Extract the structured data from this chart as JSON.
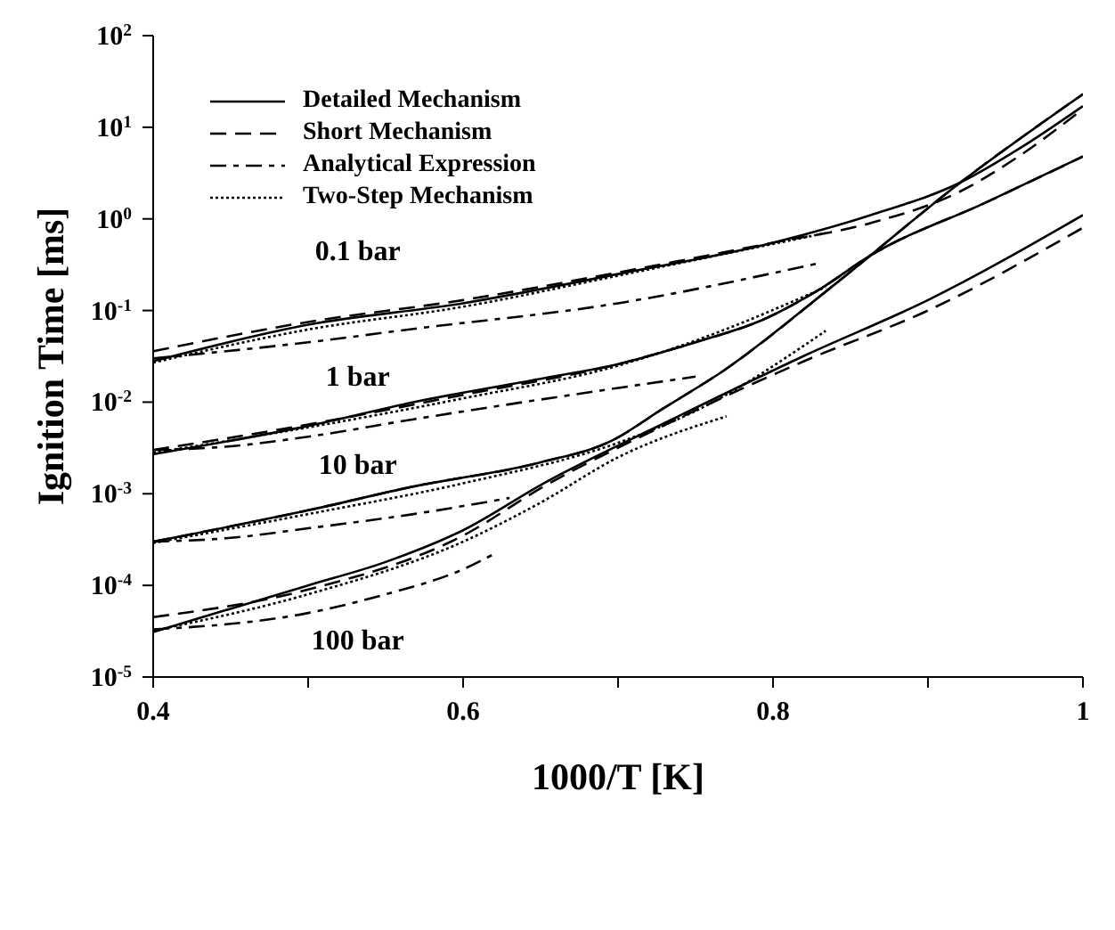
{
  "chart_data": {
    "type": "line",
    "xlabel": "1000/T [K]",
    "ylabel": "Ignition Time [ms]",
    "log": "y",
    "legend": "top left",
    "xlim": [
      0.4,
      1
    ],
    "xticks": [
      0.4,
      {
        "value": 0.5,
        "label": null
      },
      0.6,
      {
        "value": 0.7,
        "label": null
      },
      0.8,
      {
        "value": 0.9,
        "label": null
      },
      1
    ],
    "ylim": [
      1e-05,
      100
    ],
    "yticks": [
      {
        "value": 1e-05,
        "label": "10$^{-5}$"
      },
      {
        "value": 0.0001,
        "label": "10$^{-4}$"
      },
      {
        "value": 0.001,
        "label": "10$^{-3}$"
      },
      {
        "value": 0.01,
        "label": "10$^{-2}$"
      },
      {
        "value": 0.1,
        "label": "10$^{-1}$"
      },
      {
        "value": 1,
        "label": "10$^{0}$"
      },
      {
        "value": 10,
        "label": "10$^{1}$"
      },
      {
        "value": 100,
        "label": "10$^{2}$"
      }
    ],
    "annotations": [
      "0.1 bar",
      "1 bar",
      "10 bar",
      "100 bar"
    ],
    "series": [
      {
        "name": "Detailed Mechanism",
        "color": "#000000",
        "line_style": "solid",
        "x": [
          0.4,
          0.5,
          0.6,
          0.7,
          0.8,
          0.863,
          0.921,
          0.96,
          1.0
        ],
        "values": [
          0.028,
          0.07,
          0.12,
          0.25,
          0.55,
          1.1,
          2.5,
          6,
          17
        ]
      },
      {
        "name": "Short Mechanism",
        "color": "#000000",
        "line_style": "dashed",
        "x": [
          0.4,
          0.5,
          0.6,
          0.7,
          0.8,
          0.863,
          0.921,
          0.96,
          1.0
        ],
        "values": [
          0.036,
          0.075,
          0.13,
          0.26,
          0.55,
          0.9,
          2.0,
          5,
          15.8
        ]
      },
      {
        "name": "Analytical Expression",
        "color": "#000000",
        "line_style": "dashdot",
        "x": [
          0.4,
          0.5,
          0.568,
          0.7,
          0.83
        ],
        "values": [
          0.03,
          0.045,
          0.063,
          0.12,
          0.33
        ]
      },
      {
        "name": "Two-Step Mechanism",
        "color": "#000000",
        "line_style": "dotted",
        "x": [
          0.4,
          0.5,
          0.6,
          0.7,
          0.834
        ],
        "values": [
          0.027,
          0.062,
          0.11,
          0.24,
          0.7
        ]
      },
      {
        "color": "#000000",
        "line_style": "solid",
        "x": [
          0.4,
          0.5,
          0.568,
          0.65,
          0.7,
          0.75,
          0.794,
          0.83,
          0.863,
          0.937,
          1.0
        ],
        "values": [
          0.0027,
          0.0055,
          0.01,
          0.018,
          0.026,
          0.045,
          0.08,
          0.17,
          0.4,
          1.5,
          4.8
        ]
      },
      {
        "color": "#000000",
        "line_style": "dashed",
        "x": [
          0.4,
          0.5,
          0.6,
          0.7,
          0.75,
          0.794,
          0.83,
          0.863,
          0.937,
          1.0
        ],
        "values": [
          0.003,
          0.0057,
          0.012,
          0.026,
          0.045,
          0.08,
          0.17,
          0.4,
          1.5,
          4.8
        ]
      },
      {
        "color": "#000000",
        "line_style": "dashdot",
        "x": [
          0.4,
          0.45,
          0.5,
          0.568,
          0.75
        ],
        "values": [
          0.003,
          0.0033,
          0.0042,
          0.0065,
          0.019
        ]
      },
      {
        "color": "#000000",
        "line_style": "dotted",
        "x": [
          0.4,
          0.5,
          0.6,
          0.7,
          0.75,
          0.834
        ],
        "values": [
          0.0028,
          0.0053,
          0.011,
          0.025,
          0.047,
          0.18
        ]
      },
      {
        "color": "#000000",
        "line_style": "solid",
        "x": [
          0.4,
          0.5,
          0.568,
          0.65,
          0.696,
          0.729,
          0.768,
          0.841,
          0.921,
          1.0
        ],
        "values": [
          0.0003,
          0.00066,
          0.0012,
          0.0022,
          0.0038,
          0.0085,
          0.022,
          0.2,
          2.5,
          23
        ]
      },
      {
        "color": "#000000",
        "line_style": "dashed",
        "x": [
          0.4,
          0.5,
          0.568,
          0.65,
          0.696,
          0.729,
          0.768,
          0.841,
          0.921,
          1.0
        ],
        "values": [
          0.0003,
          0.00066,
          0.0012,
          0.0022,
          0.0038,
          0.0085,
          0.022,
          0.2,
          2.5,
          23
        ]
      },
      {
        "color": "#000000",
        "line_style": "dashdot",
        "x": [
          0.4,
          0.45,
          0.5,
          0.568,
          0.63
        ],
        "values": [
          0.0003,
          0.00033,
          0.00042,
          0.0006,
          0.0009
        ]
      },
      {
        "color": "#000000",
        "line_style": "dotted",
        "x": [
          0.4,
          0.5,
          0.6,
          0.7,
          0.75,
          0.834
        ],
        "values": [
          0.00029,
          0.0006,
          0.0013,
          0.0036,
          0.008,
          0.06
        ]
      },
      {
        "color": "#000000",
        "line_style": "solid",
        "x": [
          0.4,
          0.5,
          0.55,
          0.6,
          0.652,
          0.729,
          0.82,
          0.9,
          1.0
        ],
        "values": [
          3.1e-05,
          0.0001,
          0.00018,
          0.0004,
          0.0013,
          0.0058,
          0.032,
          0.13,
          1.1
        ]
      },
      {
        "color": "#000000",
        "line_style": "dashed",
        "x": [
          0.4,
          0.5,
          0.6,
          0.652,
          0.729,
          0.82,
          0.9,
          1.0
        ],
        "values": [
          4.5e-05,
          9e-05,
          0.00035,
          0.0012,
          0.0055,
          0.028,
          0.1,
          0.8
        ]
      },
      {
        "color": "#000000",
        "line_style": "dashdot",
        "x": [
          0.4,
          0.5,
          0.55,
          0.6,
          0.62
        ],
        "values": [
          3.3e-05,
          5e-05,
          8e-05,
          0.00015,
          0.00022
        ]
      },
      {
        "color": "#000000",
        "line_style": "dotted",
        "x": [
          0.4,
          0.5,
          0.6,
          0.65,
          0.7,
          0.77
        ],
        "values": [
          3.2e-05,
          8e-05,
          0.0003,
          0.0008,
          0.0025,
          0.007
        ]
      }
    ]
  }
}
